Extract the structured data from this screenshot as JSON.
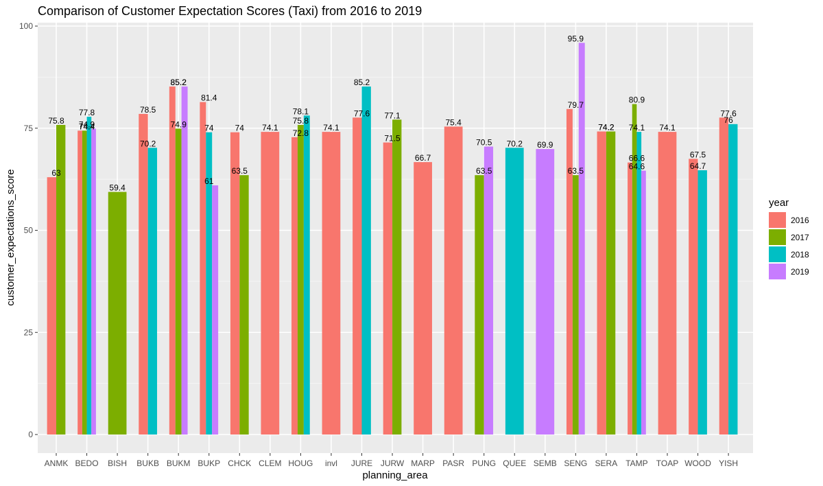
{
  "chart_data": {
    "type": "bar",
    "title": "Comparison of Customer Expectation Scores (Taxi) from 2016 to 2019",
    "xlabel": "planning_area",
    "ylabel": "customer_expectations_score",
    "ylim": [
      0,
      100
    ],
    "yticks": [
      0,
      25,
      50,
      75,
      100
    ],
    "grid": true,
    "legend": {
      "title": "year",
      "placement": "right"
    },
    "categories": [
      "ANMK",
      "BEDO",
      "BISH",
      "BUKB",
      "BUKM",
      "BUKP",
      "CHCK",
      "CLEM",
      "HOUG",
      "invl",
      "JURE",
      "JURW",
      "MARP",
      "PASR",
      "PUNG",
      "QUEE",
      "SEMB",
      "SENG",
      "SERA",
      "TAMP",
      "TOAP",
      "WOOD",
      "YISH"
    ],
    "series": [
      {
        "name": "2016",
        "color": "#F8766D",
        "values": [
          63,
          74.4,
          null,
          78.5,
          85.2,
          81.4,
          74,
          74.1,
          72.8,
          74.1,
          77.6,
          71.5,
          66.7,
          75.4,
          null,
          null,
          null,
          79.7,
          74.2,
          66.6,
          74.1,
          67.5,
          77.6
        ]
      },
      {
        "name": "2017",
        "color": "#7CAE00",
        "values": [
          75.8,
          74.4,
          59.4,
          null,
          74.9,
          null,
          63.5,
          null,
          75.8,
          null,
          null,
          77.1,
          null,
          null,
          63.5,
          null,
          null,
          63.5,
          74.2,
          80.9,
          null,
          null,
          null
        ]
      },
      {
        "name": "2018",
        "color": "#00BFC4",
        "values": [
          null,
          77.8,
          null,
          70.2,
          null,
          74,
          null,
          null,
          78.1,
          null,
          85.2,
          null,
          null,
          null,
          null,
          70.2,
          null,
          null,
          null,
          74.1,
          null,
          64.7,
          76
        ]
      },
      {
        "name": "2019",
        "color": "#C77CFF",
        "values": [
          null,
          74.9,
          null,
          null,
          85.2,
          61,
          null,
          null,
          null,
          null,
          null,
          null,
          null,
          null,
          70.5,
          null,
          69.9,
          95.9,
          null,
          64.6,
          null,
          null,
          null
        ]
      }
    ]
  }
}
